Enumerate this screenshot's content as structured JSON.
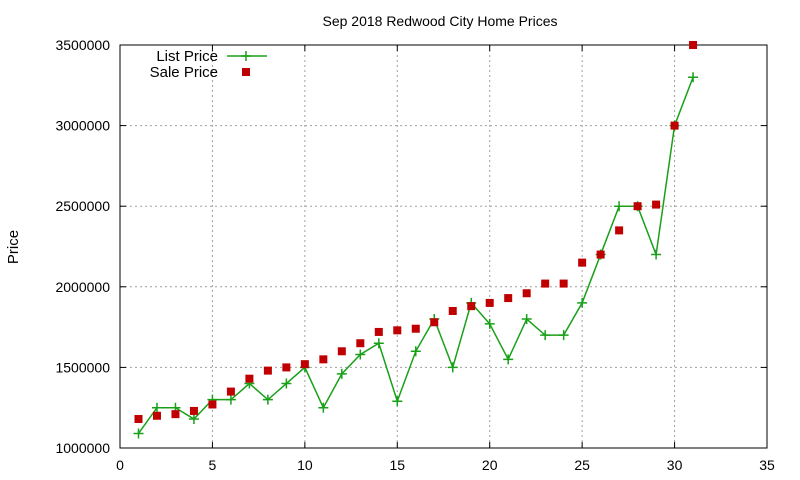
{
  "chart_data": {
    "type": "line",
    "title": "Sep 2018 Redwood City Home Prices",
    "xlabel": "",
    "ylabel": "Price",
    "xlim": [
      0,
      35
    ],
    "ylim": [
      1000000,
      3500000
    ],
    "x_ticks": [
      0,
      5,
      10,
      15,
      20,
      25,
      30,
      35
    ],
    "y_ticks": [
      1000000,
      1500000,
      2000000,
      2500000,
      3000000,
      3500000
    ],
    "grid": true,
    "legend_position": "top-left",
    "series": [
      {
        "name": "List Price",
        "style": "line-plus",
        "color": "#18a018",
        "x": [
          1,
          2,
          3,
          4,
          5,
          6,
          7,
          8,
          9,
          10,
          11,
          12,
          13,
          14,
          15,
          16,
          17,
          18,
          19,
          20,
          21,
          22,
          23,
          24,
          25,
          26,
          27,
          28,
          29,
          30,
          31
        ],
        "values": [
          1090000,
          1250000,
          1250000,
          1180000,
          1300000,
          1300000,
          1400000,
          1300000,
          1400000,
          1500000,
          1250000,
          1460000,
          1580000,
          1650000,
          1290000,
          1600000,
          1800000,
          1500000,
          1900000,
          1770000,
          1550000,
          1800000,
          1700000,
          1700000,
          1900000,
          2200000,
          2500000,
          2500000,
          2200000,
          3000000,
          3300000
        ]
      },
      {
        "name": "Sale Price",
        "style": "square-markers",
        "color": "#c00000",
        "x": [
          1,
          2,
          3,
          4,
          5,
          6,
          7,
          8,
          9,
          10,
          11,
          12,
          13,
          14,
          15,
          16,
          17,
          18,
          19,
          20,
          21,
          22,
          23,
          24,
          25,
          26,
          27,
          28,
          29,
          30,
          31
        ],
        "values": [
          1180000,
          1200000,
          1210000,
          1230000,
          1270000,
          1350000,
          1430000,
          1480000,
          1500000,
          1520000,
          1550000,
          1600000,
          1650000,
          1720000,
          1730000,
          1740000,
          1780000,
          1850000,
          1880000,
          1900000,
          1930000,
          1960000,
          2020000,
          2020000,
          2150000,
          2200000,
          2350000,
          2500000,
          2510000,
          3000000,
          3500000
        ]
      }
    ]
  }
}
